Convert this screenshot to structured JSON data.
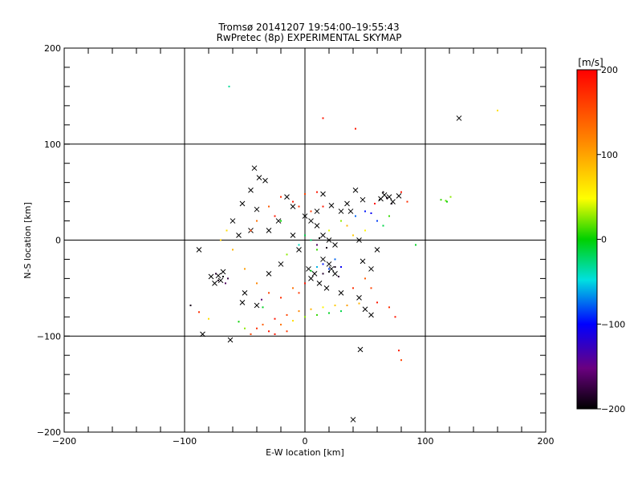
{
  "chart_data": {
    "type": "scatter",
    "title": "Tromsø 20141207 19:54:00–19:55:43",
    "subtitle": "RwPretec (8p) EXPERIMENTAL SKYMAP",
    "xlabel": "E-W location [km]",
    "ylabel": "N-S location [km]",
    "xlim": [
      -200,
      200
    ],
    "ylim": [
      -200,
      200
    ],
    "x_ticks": [
      -200,
      -100,
      0,
      100,
      200
    ],
    "y_ticks": [
      -200,
      -100,
      0,
      100,
      200
    ],
    "grid": true,
    "colorbar": {
      "label": "[m/s]",
      "range": [
        -200,
        200
      ],
      "ticks": [
        200,
        100,
        0,
        -100,
        -200
      ],
      "colormap": [
        "#000000",
        "#6a0080",
        "#0000ff",
        "#00e0e0",
        "#00d000",
        "#ffff00",
        "#ff8000",
        "#ff0000"
      ]
    },
    "series": [
      {
        "marker": "x",
        "points": [
          [
            128,
            127
          ],
          [
            -42,
            75
          ],
          [
            -38,
            65
          ],
          [
            -33,
            62
          ],
          [
            -45,
            52
          ],
          [
            -52,
            38
          ],
          [
            -40,
            32
          ],
          [
            15,
            48
          ],
          [
            22,
            36
          ],
          [
            30,
            30
          ],
          [
            42,
            52
          ],
          [
            48,
            42
          ],
          [
            66,
            47
          ],
          [
            70,
            45
          ],
          [
            73,
            40
          ],
          [
            63,
            43
          ],
          [
            78,
            46
          ],
          [
            -68,
            -33
          ],
          [
            -72,
            -37
          ],
          [
            -70,
            -42
          ],
          [
            -75,
            -45
          ],
          [
            -78,
            -38
          ],
          [
            -50,
            -55
          ],
          [
            -52,
            -65
          ],
          [
            -40,
            -68
          ],
          [
            -30,
            -35
          ],
          [
            -20,
            -25
          ],
          [
            -10,
            5
          ],
          [
            -5,
            -10
          ],
          [
            3,
            -30
          ],
          [
            8,
            -35
          ],
          [
            5,
            -40
          ],
          [
            15,
            -20
          ],
          [
            20,
            -25
          ],
          [
            22,
            -30
          ],
          [
            25,
            -35
          ],
          [
            12,
            -45
          ],
          [
            18,
            -50
          ],
          [
            30,
            -55
          ],
          [
            45,
            -60
          ],
          [
            50,
            -72
          ],
          [
            55,
            -78
          ],
          [
            -85,
            -98
          ],
          [
            -62,
            -104
          ],
          [
            46,
            -114
          ],
          [
            40,
            -187
          ],
          [
            -88,
            -10
          ],
          [
            -55,
            5
          ],
          [
            -45,
            10
          ],
          [
            -30,
            10
          ],
          [
            -22,
            20
          ],
          [
            10,
            15
          ],
          [
            15,
            5
          ],
          [
            20,
            0
          ],
          [
            25,
            -5
          ],
          [
            45,
            0
          ],
          [
            48,
            -22
          ],
          [
            55,
            -30
          ],
          [
            35,
            38
          ],
          [
            38,
            30
          ],
          [
            -15,
            45
          ],
          [
            -10,
            35
          ],
          [
            0,
            25
          ],
          [
            5,
            20
          ],
          [
            10,
            30
          ],
          [
            -60,
            20
          ],
          [
            60,
            -10
          ]
        ]
      },
      {
        "marker": "dot",
        "points": [
          [
            -63,
            160,
            -10
          ],
          [
            160,
            135,
            100
          ],
          [
            15,
            127,
            190
          ],
          [
            42,
            116,
            190
          ],
          [
            113,
            42,
            40
          ],
          [
            117,
            41,
            50
          ],
          [
            121,
            45,
            60
          ],
          [
            118,
            40,
            30
          ],
          [
            92,
            -5,
            20
          ],
          [
            -35,
            -70,
            20
          ],
          [
            -50,
            -92,
            60
          ],
          [
            -95,
            -68,
            -190
          ],
          [
            -36,
            -62,
            -150
          ],
          [
            -80,
            -82,
            100
          ],
          [
            -88,
            -75,
            180
          ],
          [
            -20,
            20,
            30
          ],
          [
            0,
            5,
            10
          ],
          [
            5,
            0,
            0
          ],
          [
            -5,
            -5,
            -20
          ],
          [
            10,
            -10,
            40
          ],
          [
            -15,
            -15,
            60
          ],
          [
            20,
            10,
            80
          ],
          [
            25,
            -20,
            -60
          ],
          [
            15,
            -25,
            -80
          ],
          [
            30,
            -28,
            -90
          ],
          [
            20,
            -30,
            -70
          ],
          [
            10,
            -28,
            -40
          ],
          [
            5,
            -32,
            20
          ],
          [
            -10,
            40,
            190
          ],
          [
            -20,
            45,
            180
          ],
          [
            0,
            48,
            170
          ],
          [
            10,
            50,
            190
          ],
          [
            -30,
            35,
            160
          ],
          [
            -25,
            25,
            190
          ],
          [
            -5,
            35,
            180
          ],
          [
            5,
            30,
            175
          ],
          [
            15,
            35,
            190
          ],
          [
            -40,
            20,
            150
          ],
          [
            -45,
            10,
            170
          ],
          [
            35,
            15,
            120
          ],
          [
            40,
            5,
            110
          ],
          [
            50,
            10,
            90
          ],
          [
            30,
            20,
            60
          ],
          [
            42,
            25,
            -60
          ],
          [
            50,
            30,
            -80
          ],
          [
            55,
            28,
            -90
          ],
          [
            60,
            20,
            -70
          ],
          [
            65,
            15,
            10
          ],
          [
            70,
            25,
            40
          ],
          [
            -25,
            -82,
            190
          ],
          [
            -15,
            -78,
            170
          ],
          [
            -5,
            -74,
            140
          ],
          [
            5,
            -72,
            120
          ],
          [
            15,
            -70,
            90
          ],
          [
            25,
            -68,
            110
          ],
          [
            35,
            -68,
            130
          ],
          [
            45,
            -66,
            120
          ],
          [
            -35,
            -88,
            160
          ],
          [
            -40,
            -92,
            180
          ],
          [
            -30,
            -95,
            190
          ],
          [
            -20,
            -88,
            150
          ],
          [
            -10,
            -84,
            100
          ],
          [
            0,
            -80,
            60
          ],
          [
            10,
            -78,
            40
          ],
          [
            20,
            -76,
            20
          ],
          [
            30,
            -74,
            10
          ],
          [
            -45,
            -98,
            170
          ],
          [
            -25,
            -98,
            190
          ],
          [
            -15,
            -95,
            175
          ],
          [
            60,
            -65,
            190
          ],
          [
            70,
            -70,
            180
          ],
          [
            75,
            -80,
            190
          ],
          [
            78,
            -115,
            190
          ],
          [
            80,
            -125,
            170
          ],
          [
            -55,
            -85,
            30
          ],
          [
            -65,
            10,
            100
          ],
          [
            -70,
            0,
            110
          ],
          [
            -60,
            -10,
            120
          ],
          [
            -50,
            -30,
            130
          ],
          [
            -40,
            -45,
            140
          ],
          [
            -30,
            -55,
            170
          ],
          [
            -20,
            -60,
            180
          ],
          [
            -10,
            -50,
            150
          ],
          [
            0,
            -45,
            190
          ],
          [
            -5,
            -55,
            175
          ],
          [
            40,
            -50,
            180
          ],
          [
            50,
            -40,
            160
          ],
          [
            55,
            -50,
            170
          ],
          [
            62,
            42,
            -200
          ],
          [
            68,
            44,
            -190
          ],
          [
            72,
            38,
            -185
          ],
          [
            65,
            50,
            -195
          ],
          [
            58,
            38,
            200
          ],
          [
            80,
            50,
            190
          ],
          [
            85,
            40,
            180
          ],
          [
            -68,
            -38,
            -200
          ],
          [
            -72,
            -42,
            -190
          ],
          [
            -74,
            -35,
            -180
          ],
          [
            -64,
            -40,
            -170
          ],
          [
            -66,
            -45,
            -160
          ],
          [
            20,
            -33,
            -200
          ],
          [
            25,
            -28,
            -190
          ],
          [
            15,
            -35,
            -180
          ],
          [
            28,
            -38,
            -170
          ],
          [
            10,
            -5,
            -160
          ],
          [
            12,
            2,
            -200
          ],
          [
            18,
            -8,
            -190
          ]
        ]
      }
    ]
  }
}
